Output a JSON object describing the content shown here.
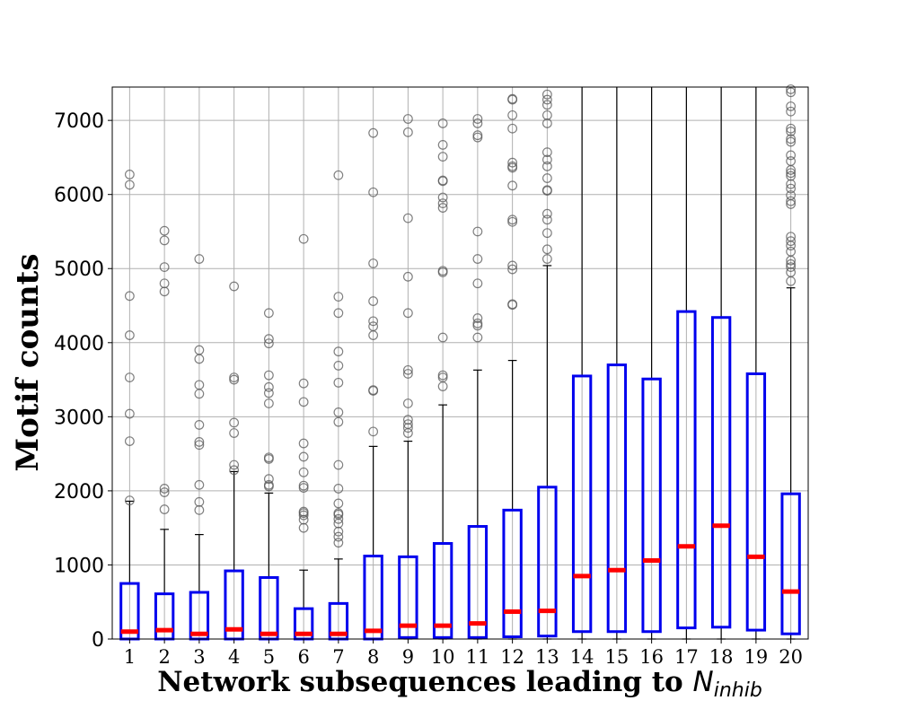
{
  "chart_data": {
    "type": "box",
    "title": "",
    "xlabel": "Network subsequences leading to ",
    "xlabel_math": "N",
    "xlabel_math_sub": "inhib",
    "ylabel": "Motif counts",
    "ylim": [
      0,
      7450
    ],
    "yticks": [
      0,
      1000,
      2000,
      3000,
      4000,
      5000,
      6000,
      7000
    ],
    "ytick_labels": [
      "0",
      "1000",
      "2000",
      "3000",
      "4000",
      "5000",
      "6000",
      "7000"
    ],
    "grid": true,
    "colors": {
      "box": "#0000ee",
      "median": "#ff0000",
      "whisker": "#000000",
      "flier": "#555555",
      "grid": "#b0b0b0"
    },
    "boxes": [
      {
        "label": "1",
        "q1": 0,
        "median": 100,
        "q3": 750,
        "whislo": 0,
        "whishi": 1860,
        "fliers": [
          1870,
          2670,
          3040,
          3530,
          4100,
          4630,
          6130,
          6270
        ]
      },
      {
        "label": "2",
        "q1": 0,
        "median": 120,
        "q3": 610,
        "whislo": 0,
        "whishi": 1480,
        "fliers": [
          1750,
          1980,
          2030,
          4690,
          4800,
          5020,
          5380,
          5510
        ]
      },
      {
        "label": "3",
        "q1": 0,
        "median": 70,
        "q3": 630,
        "whislo": 0,
        "whishi": 1410,
        "fliers": [
          1740,
          1850,
          2080,
          2620,
          2660,
          2890,
          3310,
          3430,
          3780,
          3900,
          5130
        ]
      },
      {
        "label": "4",
        "q1": 0,
        "median": 130,
        "q3": 920,
        "whislo": 0,
        "whishi": 2260,
        "fliers": [
          2280,
          2350,
          2780,
          2920,
          3500,
          3530,
          4760
        ]
      },
      {
        "label": "5",
        "q1": 0,
        "median": 70,
        "q3": 830,
        "whislo": 0,
        "whishi": 1970,
        "fliers": [
          2060,
          2080,
          2160,
          2430,
          2450,
          3180,
          3320,
          3400,
          3560,
          3990,
          4050,
          4400
        ]
      },
      {
        "label": "6",
        "q1": 0,
        "median": 70,
        "q3": 410,
        "whislo": 0,
        "whishi": 930,
        "fliers": [
          1500,
          1610,
          1670,
          1700,
          1720,
          2040,
          2070,
          2250,
          2460,
          2640,
          3200,
          3450,
          5400
        ]
      },
      {
        "label": "7",
        "q1": 0,
        "median": 70,
        "q3": 480,
        "whislo": 0,
        "whishi": 1080,
        "fliers": [
          1300,
          1380,
          1450,
          1560,
          1620,
          1680,
          1700,
          1830,
          2030,
          2350,
          2930,
          3060,
          3460,
          3690,
          3880,
          4400,
          4620,
          6260
        ]
      },
      {
        "label": "8",
        "q1": 0,
        "median": 110,
        "q3": 1120,
        "whislo": 0,
        "whishi": 2600,
        "fliers": [
          2800,
          3350,
          3360,
          4100,
          4220,
          4290,
          4560,
          5070,
          6030,
          6830
        ]
      },
      {
        "label": "9",
        "q1": 20,
        "median": 180,
        "q3": 1110,
        "whislo": 0,
        "whishi": 2670,
        "fliers": [
          2780,
          2850,
          2900,
          2960,
          3180,
          3580,
          3630,
          4400,
          4890,
          5680,
          6840,
          7020
        ]
      },
      {
        "label": "10",
        "q1": 20,
        "median": 180,
        "q3": 1290,
        "whislo": 0,
        "whishi": 3160,
        "fliers": [
          3410,
          3530,
          3560,
          4070,
          4950,
          4970,
          5820,
          5880,
          5960,
          6180,
          6190,
          6510,
          6670,
          6960
        ]
      },
      {
        "label": "11",
        "q1": 20,
        "median": 210,
        "q3": 1520,
        "whislo": 0,
        "whishi": 3630,
        "fliers": [
          4070,
          4230,
          4260,
          4330,
          4800,
          5130,
          5500,
          6770,
          6800,
          6960,
          7020
        ]
      },
      {
        "label": "12",
        "q1": 30,
        "median": 370,
        "q3": 1740,
        "whislo": 0,
        "whishi": 3760,
        "fliers": [
          4510,
          4520,
          4990,
          5040,
          5630,
          5660,
          6120,
          6360,
          6380,
          6430,
          6890,
          7070,
          7280,
          7290
        ]
      },
      {
        "label": "13",
        "q1": 40,
        "median": 380,
        "q3": 2050,
        "whislo": 0,
        "whishi": 5040,
        "fliers": [
          5130,
          5260,
          5480,
          5660,
          5740,
          6050,
          6060,
          6220,
          6380,
          6470,
          6570,
          6960,
          7070,
          7210,
          7280,
          7350
        ]
      },
      {
        "label": "14",
        "q1": 100,
        "median": 850,
        "q3": 3550,
        "whislo": 0,
        "whishi": 7450,
        "fliers": []
      },
      {
        "label": "15",
        "q1": 100,
        "median": 930,
        "q3": 3700,
        "whislo": 0,
        "whishi": 7450,
        "fliers": []
      },
      {
        "label": "16",
        "q1": 100,
        "median": 1060,
        "q3": 3510,
        "whislo": 0,
        "whishi": 7450,
        "fliers": []
      },
      {
        "label": "17",
        "q1": 150,
        "median": 1250,
        "q3": 4420,
        "whislo": 0,
        "whishi": 7450,
        "fliers": []
      },
      {
        "label": "18",
        "q1": 160,
        "median": 1530,
        "q3": 4340,
        "whislo": 0,
        "whishi": 7450,
        "fliers": []
      },
      {
        "label": "19",
        "q1": 120,
        "median": 1110,
        "q3": 3580,
        "whislo": 0,
        "whishi": 7450,
        "fliers": []
      },
      {
        "label": "20",
        "q1": 70,
        "median": 640,
        "q3": 1960,
        "whislo": 0,
        "whishi": 4740,
        "fliers": [
          4830,
          4950,
          5020,
          5060,
          5110,
          5230,
          5310,
          5370,
          5430,
          5870,
          5910,
          5990,
          6080,
          6140,
          6250,
          6290,
          6330,
          6450,
          6530,
          6710,
          6750,
          6850,
          6890,
          7120,
          7190,
          7380,
          7420
        ]
      }
    ]
  }
}
